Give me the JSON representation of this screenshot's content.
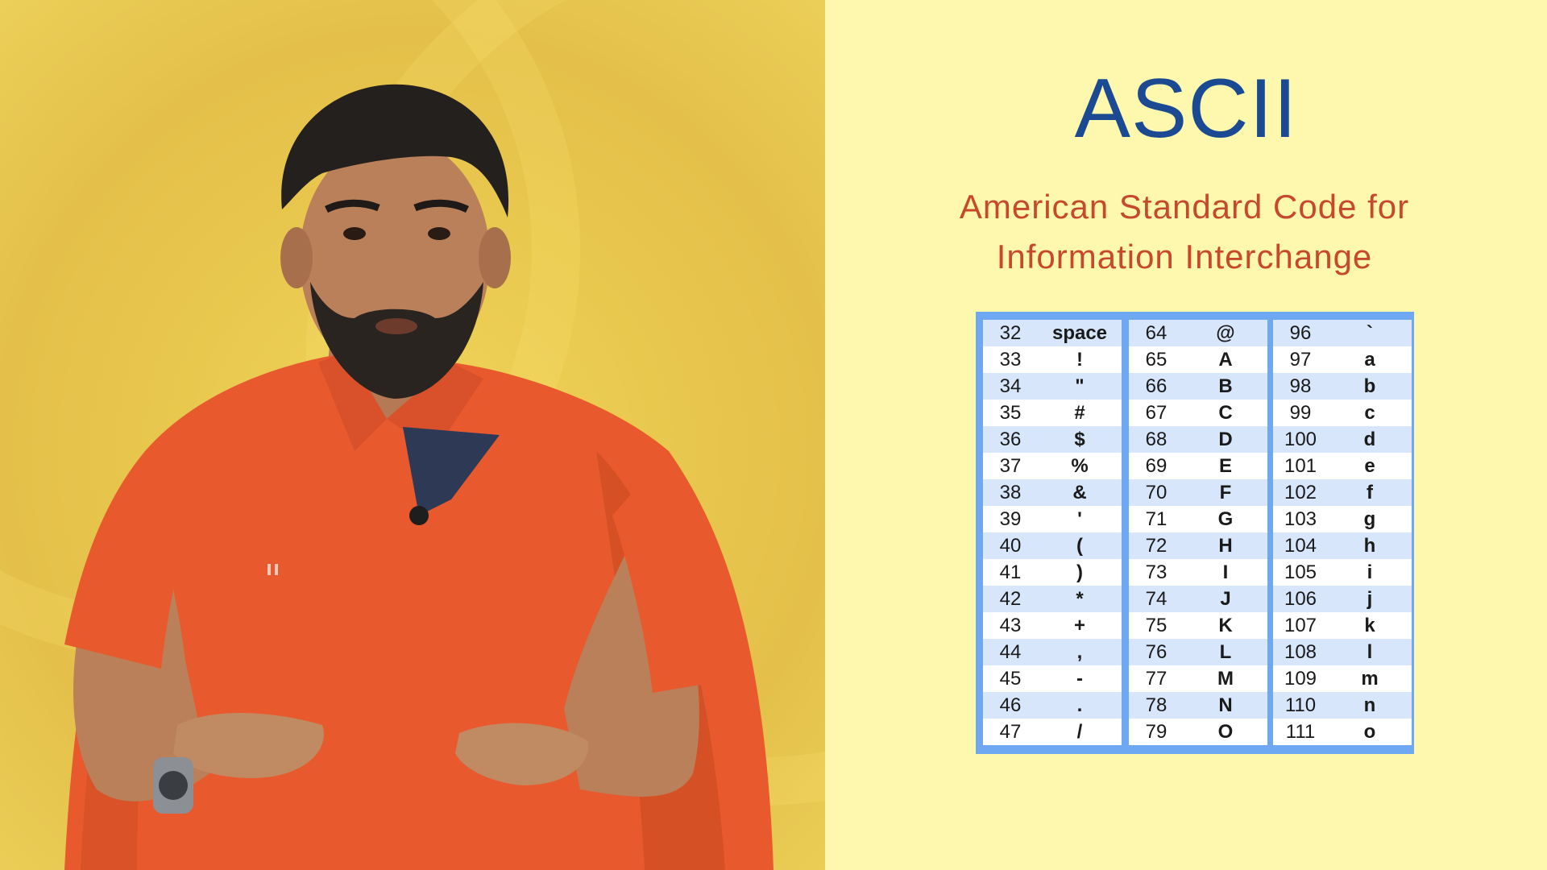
{
  "slide": {
    "title": "ASCII",
    "subtitle_line1": "American Standard Code for",
    "subtitle_line2": "Information Interchange"
  },
  "colors": {
    "title": "#1b4a93",
    "subtitle": "#c6492e",
    "table_border": "#6ea7f2",
    "row_shade": "#d7e6fb",
    "left_background": "#e6c44d",
    "right_background": "#fdf8ad",
    "shirt": "#e85a2e"
  },
  "ascii_table": {
    "columns": [
      [
        {
          "code": "32",
          "char": "space"
        },
        {
          "code": "33",
          "char": "!"
        },
        {
          "code": "34",
          "char": "\""
        },
        {
          "code": "35",
          "char": "#"
        },
        {
          "code": "36",
          "char": "$"
        },
        {
          "code": "37",
          "char": "%"
        },
        {
          "code": "38",
          "char": "&"
        },
        {
          "code": "39",
          "char": "'"
        },
        {
          "code": "40",
          "char": "("
        },
        {
          "code": "41",
          "char": ")"
        },
        {
          "code": "42",
          "char": "*"
        },
        {
          "code": "43",
          "char": "+"
        },
        {
          "code": "44",
          "char": ","
        },
        {
          "code": "45",
          "char": "-"
        },
        {
          "code": "46",
          "char": "."
        },
        {
          "code": "47",
          "char": "/"
        }
      ],
      [
        {
          "code": "64",
          "char": "@"
        },
        {
          "code": "65",
          "char": "A"
        },
        {
          "code": "66",
          "char": "B"
        },
        {
          "code": "67",
          "char": "C"
        },
        {
          "code": "68",
          "char": "D"
        },
        {
          "code": "69",
          "char": "E"
        },
        {
          "code": "70",
          "char": "F"
        },
        {
          "code": "71",
          "char": "G"
        },
        {
          "code": "72",
          "char": "H"
        },
        {
          "code": "73",
          "char": "I"
        },
        {
          "code": "74",
          "char": "J"
        },
        {
          "code": "75",
          "char": "K"
        },
        {
          "code": "76",
          "char": "L"
        },
        {
          "code": "77",
          "char": "M"
        },
        {
          "code": "78",
          "char": "N"
        },
        {
          "code": "79",
          "char": "O"
        }
      ],
      [
        {
          "code": "96",
          "char": "`"
        },
        {
          "code": "97",
          "char": "a"
        },
        {
          "code": "98",
          "char": "b"
        },
        {
          "code": "99",
          "char": "c"
        },
        {
          "code": "100",
          "char": "d"
        },
        {
          "code": "101",
          "char": "e"
        },
        {
          "code": "102",
          "char": "f"
        },
        {
          "code": "103",
          "char": "g"
        },
        {
          "code": "104",
          "char": "h"
        },
        {
          "code": "105",
          "char": "i"
        },
        {
          "code": "106",
          "char": "j"
        },
        {
          "code": "107",
          "char": "k"
        },
        {
          "code": "108",
          "char": "l"
        },
        {
          "code": "109",
          "char": "m"
        },
        {
          "code": "110",
          "char": "n"
        },
        {
          "code": "111",
          "char": "o"
        }
      ]
    ]
  },
  "presenter": {
    "icon": "presenter-figure",
    "watch_icon": "wristwatch-icon",
    "microphone_icon": "lapel-microphone-icon"
  }
}
